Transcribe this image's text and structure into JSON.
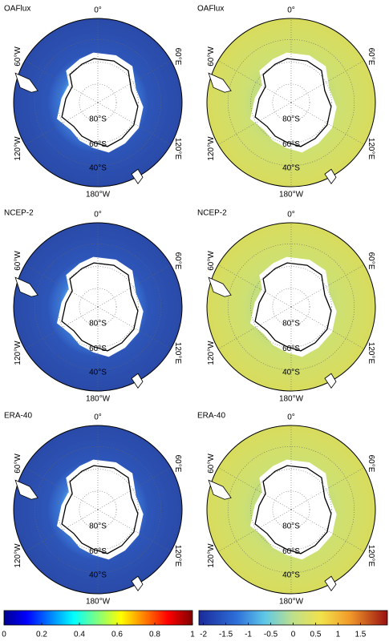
{
  "panels": [
    {
      "label": "OAFlux",
      "lon_labels": [
        "0°",
        "60°E",
        "120°E",
        "180°W",
        "120°W",
        "60°W"
      ],
      "lat_labels": [
        "80°S",
        "60°S",
        "40°S"
      ]
    },
    {
      "label": "OAFlux",
      "lon_labels": [
        "0°",
        "60°E",
        "120°E",
        "180°W",
        "120°W",
        "60°W"
      ],
      "lat_labels": [
        "80°S",
        "60°S",
        "40°S"
      ]
    },
    {
      "label": "NCEP-2",
      "lon_labels": [
        "0°",
        "60°E",
        "120°E",
        "180°W",
        "120°W",
        "60°W"
      ],
      "lat_labels": [
        "80°S",
        "60°S",
        "40°S"
      ]
    },
    {
      "label": "NCEP-2",
      "lon_labels": [
        "0°",
        "60°E",
        "120°E",
        "180°W",
        "120°W",
        "60°W"
      ],
      "lat_labels": [
        "80°S",
        "60°S",
        "40°S"
      ]
    },
    {
      "label": "ERA-40",
      "lon_labels": [
        "0°",
        "60°E",
        "120°E",
        "180°W",
        "120°W",
        "60°W"
      ],
      "lat_labels": [
        "80°S",
        "60°S",
        "40°S"
      ]
    },
    {
      "label": "ERA-40",
      "lon_labels": [
        "0°",
        "60°E",
        "120°E",
        "180°W",
        "120°W",
        "60°W"
      ],
      "lat_labels": [
        "80°S",
        "60°S",
        "40°S"
      ]
    }
  ],
  "colorbars": [
    {
      "lim": [
        0,
        1
      ],
      "ticks": [
        0,
        0.2,
        0.4,
        0.6,
        0.8,
        1
      ]
    },
    {
      "lim": [
        -2.1,
        2.1
      ],
      "ticks": [
        -2,
        -1.5,
        -1,
        -0.5,
        0,
        0.5,
        1,
        1.5
      ]
    }
  ]
}
